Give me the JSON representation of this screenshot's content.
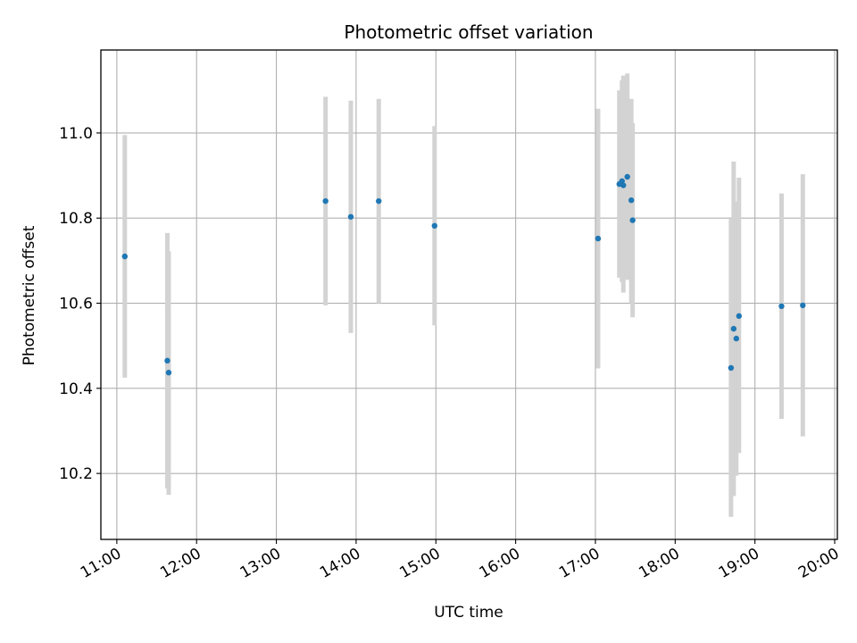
{
  "chart_data": {
    "type": "scatter",
    "title": "Photometric offset variation",
    "xlabel": "UTC time",
    "ylabel": "Photometric offset",
    "grid": true,
    "xlim": [
      "10:48",
      "20:02"
    ],
    "ylim": [
      10.045,
      11.195
    ],
    "x_ticks": [
      "11:00",
      "12:00",
      "13:00",
      "14:00",
      "15:00",
      "16:00",
      "17:00",
      "18:00",
      "19:00",
      "20:00"
    ],
    "y_ticks": [
      10.2,
      10.4,
      10.6,
      10.8,
      11.0
    ],
    "y_tick_labels": [
      "10.2",
      "10.4",
      "10.6",
      "10.8",
      "11.0"
    ],
    "point_color": "#1f77b4",
    "errorbar_color": "#d3d3d3",
    "points": [
      {
        "x": "11:06",
        "y": 10.71,
        "low": 10.425,
        "high": 10.995
      },
      {
        "x": "11:38",
        "y": 10.465,
        "low": 10.165,
        "high": 10.765
      },
      {
        "x": "11:39",
        "y": 10.437,
        "low": 10.15,
        "high": 10.722
      },
      {
        "x": "13:37",
        "y": 10.84,
        "low": 10.595,
        "high": 11.085
      },
      {
        "x": "13:56",
        "y": 10.803,
        "low": 10.53,
        "high": 11.076
      },
      {
        "x": "14:17",
        "y": 10.84,
        "low": 10.6,
        "high": 11.08
      },
      {
        "x": "14:59",
        "y": 10.782,
        "low": 10.548,
        "high": 11.016
      },
      {
        "x": "17:02",
        "y": 10.752,
        "low": 10.447,
        "high": 11.057
      },
      {
        "x": "17:18",
        "y": 10.88,
        "low": 10.66,
        "high": 11.1
      },
      {
        "x": "17:20",
        "y": 10.887,
        "low": 10.65,
        "high": 11.124
      },
      {
        "x": "17:21",
        "y": 10.877,
        "low": 10.625,
        "high": 11.135
      },
      {
        "x": "17:24",
        "y": 10.897,
        "low": 10.655,
        "high": 11.14
      },
      {
        "x": "17:27",
        "y": 10.842,
        "low": 10.6,
        "high": 11.08
      },
      {
        "x": "17:28",
        "y": 10.795,
        "low": 10.567,
        "high": 11.023
      },
      {
        "x": "18:42",
        "y": 10.448,
        "low": 10.098,
        "high": 10.798
      },
      {
        "x": "18:44",
        "y": 10.54,
        "low": 10.147,
        "high": 10.933
      },
      {
        "x": "18:46",
        "y": 10.517,
        "low": 10.195,
        "high": 10.839
      },
      {
        "x": "18:48",
        "y": 10.57,
        "low": 10.248,
        "high": 10.895
      },
      {
        "x": "19:20",
        "y": 10.593,
        "low": 10.328,
        "high": 10.858
      },
      {
        "x": "19:36",
        "y": 10.595,
        "low": 10.287,
        "high": 10.903
      }
    ]
  }
}
